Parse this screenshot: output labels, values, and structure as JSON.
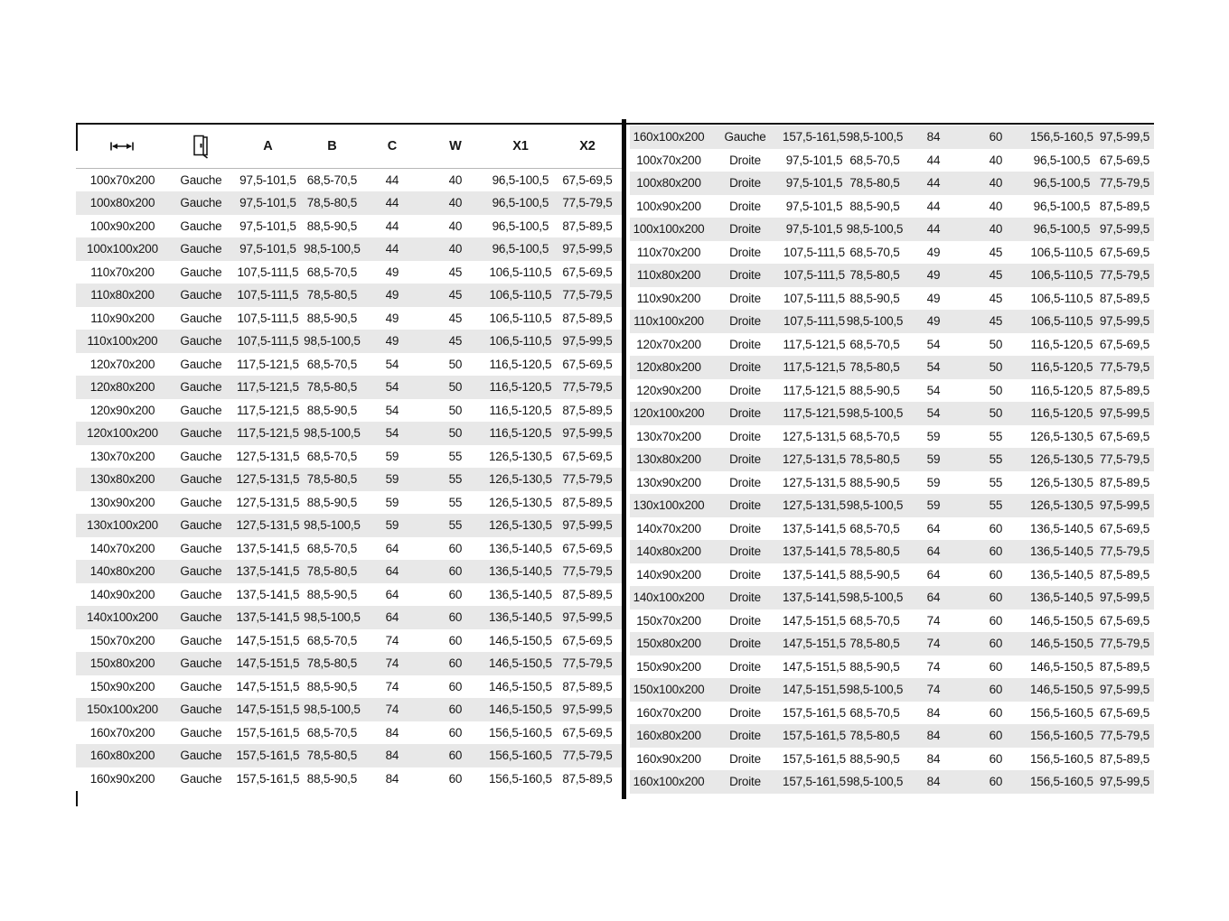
{
  "table": {
    "headers": {
      "dimension_icon": "width-dimension-icon",
      "door_icon": "door-icon",
      "a": "A",
      "b": "B",
      "c": "C",
      "w": "W",
      "x1": "X1",
      "x2": "X2"
    },
    "side_values": [
      "Gauche",
      "Droite"
    ],
    "colors": {
      "stripe": "#e8e8e8",
      "text": "#161616",
      "divider": "#0a0a0a",
      "header_rule": "#b8b8b8"
    },
    "rows_left": [
      [
        "100x70x200",
        "Gauche",
        "97,5-101,5",
        "68,5-70,5",
        "44",
        "40",
        "96,5-100,5",
        "67,5-69,5"
      ],
      [
        "100x80x200",
        "Gauche",
        "97,5-101,5",
        "78,5-80,5",
        "44",
        "40",
        "96,5-100,5",
        "77,5-79,5"
      ],
      [
        "100x90x200",
        "Gauche",
        "97,5-101,5",
        "88,5-90,5",
        "44",
        "40",
        "96,5-100,5",
        "87,5-89,5"
      ],
      [
        "100x100x200",
        "Gauche",
        "97,5-101,5",
        "98,5-100,5",
        "44",
        "40",
        "96,5-100,5",
        "97,5-99,5"
      ],
      [
        "110x70x200",
        "Gauche",
        "107,5-111,5",
        "68,5-70,5",
        "49",
        "45",
        "106,5-110,5",
        "67,5-69,5"
      ],
      [
        "110x80x200",
        "Gauche",
        "107,5-111,5",
        "78,5-80,5",
        "49",
        "45",
        "106,5-110,5",
        "77,5-79,5"
      ],
      [
        "110x90x200",
        "Gauche",
        "107,5-111,5",
        "88,5-90,5",
        "49",
        "45",
        "106,5-110,5",
        "87,5-89,5"
      ],
      [
        "110x100x200",
        "Gauche",
        "107,5-111,5",
        "98,5-100,5",
        "49",
        "45",
        "106,5-110,5",
        "97,5-99,5"
      ],
      [
        "120x70x200",
        "Gauche",
        "117,5-121,5",
        "68,5-70,5",
        "54",
        "50",
        "116,5-120,5",
        "67,5-69,5"
      ],
      [
        "120x80x200",
        "Gauche",
        "117,5-121,5",
        "78,5-80,5",
        "54",
        "50",
        "116,5-120,5",
        "77,5-79,5"
      ],
      [
        "120x90x200",
        "Gauche",
        "117,5-121,5",
        "88,5-90,5",
        "54",
        "50",
        "116,5-120,5",
        "87,5-89,5"
      ],
      [
        "120x100x200",
        "Gauche",
        "117,5-121,5",
        "98,5-100,5",
        "54",
        "50",
        "116,5-120,5",
        "97,5-99,5"
      ],
      [
        "130x70x200",
        "Gauche",
        "127,5-131,5",
        "68,5-70,5",
        "59",
        "55",
        "126,5-130,5",
        "67,5-69,5"
      ],
      [
        "130x80x200",
        "Gauche",
        "127,5-131,5",
        "78,5-80,5",
        "59",
        "55",
        "126,5-130,5",
        "77,5-79,5"
      ],
      [
        "130x90x200",
        "Gauche",
        "127,5-131,5",
        "88,5-90,5",
        "59",
        "55",
        "126,5-130,5",
        "87,5-89,5"
      ],
      [
        "130x100x200",
        "Gauche",
        "127,5-131,5",
        "98,5-100,5",
        "59",
        "55",
        "126,5-130,5",
        "97,5-99,5"
      ],
      [
        "140x70x200",
        "Gauche",
        "137,5-141,5",
        "68,5-70,5",
        "64",
        "60",
        "136,5-140,5",
        "67,5-69,5"
      ],
      [
        "140x80x200",
        "Gauche",
        "137,5-141,5",
        "78,5-80,5",
        "64",
        "60",
        "136,5-140,5",
        "77,5-79,5"
      ],
      [
        "140x90x200",
        "Gauche",
        "137,5-141,5",
        "88,5-90,5",
        "64",
        "60",
        "136,5-140,5",
        "87,5-89,5"
      ],
      [
        "140x100x200",
        "Gauche",
        "137,5-141,5",
        "98,5-100,5",
        "64",
        "60",
        "136,5-140,5",
        "97,5-99,5"
      ],
      [
        "150x70x200",
        "Gauche",
        "147,5-151,5",
        "68,5-70,5",
        "74",
        "60",
        "146,5-150,5",
        "67,5-69,5"
      ],
      [
        "150x80x200",
        "Gauche",
        "147,5-151,5",
        "78,5-80,5",
        "74",
        "60",
        "146,5-150,5",
        "77,5-79,5"
      ],
      [
        "150x90x200",
        "Gauche",
        "147,5-151,5",
        "88,5-90,5",
        "74",
        "60",
        "146,5-150,5",
        "87,5-89,5"
      ],
      [
        "150x100x200",
        "Gauche",
        "147,5-151,5",
        "98,5-100,5",
        "74",
        "60",
        "146,5-150,5",
        "97,5-99,5"
      ],
      [
        "160x70x200",
        "Gauche",
        "157,5-161,5",
        "68,5-70,5",
        "84",
        "60",
        "156,5-160,5",
        "67,5-69,5"
      ],
      [
        "160x80x200",
        "Gauche",
        "157,5-161,5",
        "78,5-80,5",
        "84",
        "60",
        "156,5-160,5",
        "77,5-79,5"
      ],
      [
        "160x90x200",
        "Gauche",
        "157,5-161,5",
        "88,5-90,5",
        "84",
        "60",
        "156,5-160,5",
        "87,5-89,5"
      ]
    ],
    "rows_right": [
      [
        "160x100x200",
        "Gauche",
        "157,5-161,5",
        "98,5-100,5",
        "84",
        "60",
        "156,5-160,5",
        "97,5-99,5"
      ],
      [
        "100x70x200",
        "Droite",
        "97,5-101,5",
        "68,5-70,5",
        "44",
        "40",
        "96,5-100,5",
        "67,5-69,5"
      ],
      [
        "100x80x200",
        "Droite",
        "97,5-101,5",
        "78,5-80,5",
        "44",
        "40",
        "96,5-100,5",
        "77,5-79,5"
      ],
      [
        "100x90x200",
        "Droite",
        "97,5-101,5",
        "88,5-90,5",
        "44",
        "40",
        "96,5-100,5",
        "87,5-89,5"
      ],
      [
        "100x100x200",
        "Droite",
        "97,5-101,5",
        "98,5-100,5",
        "44",
        "40",
        "96,5-100,5",
        "97,5-99,5"
      ],
      [
        "110x70x200",
        "Droite",
        "107,5-111,5",
        "68,5-70,5",
        "49",
        "45",
        "106,5-110,5",
        "67,5-69,5"
      ],
      [
        "110x80x200",
        "Droite",
        "107,5-111,5",
        "78,5-80,5",
        "49",
        "45",
        "106,5-110,5",
        "77,5-79,5"
      ],
      [
        "110x90x200",
        "Droite",
        "107,5-111,5",
        "88,5-90,5",
        "49",
        "45",
        "106,5-110,5",
        "87,5-89,5"
      ],
      [
        "110x100x200",
        "Droite",
        "107,5-111,5",
        "98,5-100,5",
        "49",
        "45",
        "106,5-110,5",
        "97,5-99,5"
      ],
      [
        "120x70x200",
        "Droite",
        "117,5-121,5",
        "68,5-70,5",
        "54",
        "50",
        "116,5-120,5",
        "67,5-69,5"
      ],
      [
        "120x80x200",
        "Droite",
        "117,5-121,5",
        "78,5-80,5",
        "54",
        "50",
        "116,5-120,5",
        "77,5-79,5"
      ],
      [
        "120x90x200",
        "Droite",
        "117,5-121,5",
        "88,5-90,5",
        "54",
        "50",
        "116,5-120,5",
        "87,5-89,5"
      ],
      [
        "120x100x200",
        "Droite",
        "117,5-121,5",
        "98,5-100,5",
        "54",
        "50",
        "116,5-120,5",
        "97,5-99,5"
      ],
      [
        "130x70x200",
        "Droite",
        "127,5-131,5",
        "68,5-70,5",
        "59",
        "55",
        "126,5-130,5",
        "67,5-69,5"
      ],
      [
        "130x80x200",
        "Droite",
        "127,5-131,5",
        "78,5-80,5",
        "59",
        "55",
        "126,5-130,5",
        "77,5-79,5"
      ],
      [
        "130x90x200",
        "Droite",
        "127,5-131,5",
        "88,5-90,5",
        "59",
        "55",
        "126,5-130,5",
        "87,5-89,5"
      ],
      [
        "130x100x200",
        "Droite",
        "127,5-131,5",
        "98,5-100,5",
        "59",
        "55",
        "126,5-130,5",
        "97,5-99,5"
      ],
      [
        "140x70x200",
        "Droite",
        "137,5-141,5",
        "68,5-70,5",
        "64",
        "60",
        "136,5-140,5",
        "67,5-69,5"
      ],
      [
        "140x80x200",
        "Droite",
        "137,5-141,5",
        "78,5-80,5",
        "64",
        "60",
        "136,5-140,5",
        "77,5-79,5"
      ],
      [
        "140x90x200",
        "Droite",
        "137,5-141,5",
        "88,5-90,5",
        "64",
        "60",
        "136,5-140,5",
        "87,5-89,5"
      ],
      [
        "140x100x200",
        "Droite",
        "137,5-141,5",
        "98,5-100,5",
        "64",
        "60",
        "136,5-140,5",
        "97,5-99,5"
      ],
      [
        "150x70x200",
        "Droite",
        "147,5-151,5",
        "68,5-70,5",
        "74",
        "60",
        "146,5-150,5",
        "67,5-69,5"
      ],
      [
        "150x80x200",
        "Droite",
        "147,5-151,5",
        "78,5-80,5",
        "74",
        "60",
        "146,5-150,5",
        "77,5-79,5"
      ],
      [
        "150x90x200",
        "Droite",
        "147,5-151,5",
        "88,5-90,5",
        "74",
        "60",
        "146,5-150,5",
        "87,5-89,5"
      ],
      [
        "150x100x200",
        "Droite",
        "147,5-151,5",
        "98,5-100,5",
        "74",
        "60",
        "146,5-150,5",
        "97,5-99,5"
      ],
      [
        "160x70x200",
        "Droite",
        "157,5-161,5",
        "68,5-70,5",
        "84",
        "60",
        "156,5-160,5",
        "67,5-69,5"
      ],
      [
        "160x80x200",
        "Droite",
        "157,5-161,5",
        "78,5-80,5",
        "84",
        "60",
        "156,5-160,5",
        "77,5-79,5"
      ],
      [
        "160x90x200",
        "Droite",
        "157,5-161,5",
        "88,5-90,5",
        "84",
        "60",
        "156,5-160,5",
        "87,5-89,5"
      ],
      [
        "160x100x200",
        "Droite",
        "157,5-161,5",
        "98,5-100,5",
        "84",
        "60",
        "156,5-160,5",
        "97,5-99,5"
      ]
    ]
  }
}
